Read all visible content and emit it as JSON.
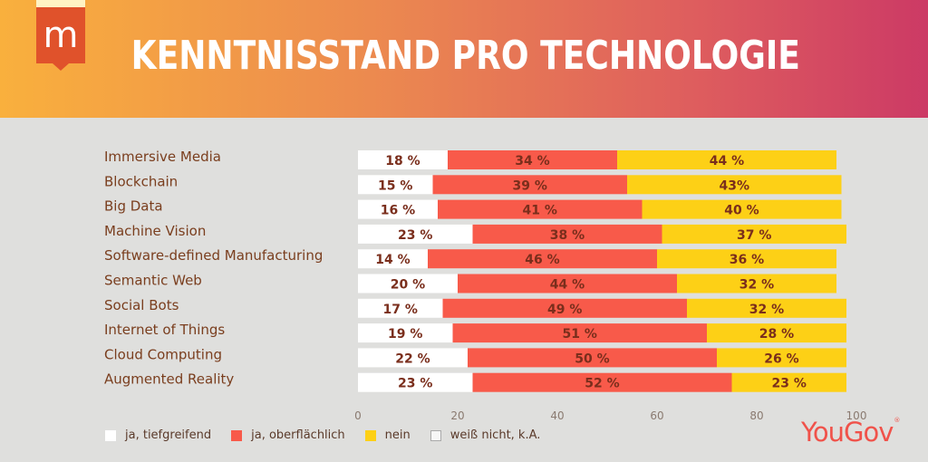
{
  "header": {
    "title": "KENNTNISSTAND PRO TECHNOLOGIE",
    "logo_letter": "m"
  },
  "brand": {
    "name": "YouGov",
    "mark": "®"
  },
  "colors": {
    "white": "#ffffff",
    "red": "#f85a4a",
    "yellow": "#fdd016",
    "light": "#f6f6f6",
    "logo": "#e0522b"
  },
  "chart_data": {
    "type": "bar",
    "orientation": "horizontal",
    "stacked": true,
    "title": "KENNTNISSTAND PRO TECHNOLOGIE",
    "categories": [
      "Immersive Media",
      "Blockchain",
      "Big Data",
      "Machine Vision",
      "Software-defined Manufacturing",
      "Semantic Web",
      "Social Bots",
      "Internet of Things",
      "Cloud Computing",
      "Augmented Reality"
    ],
    "series": [
      {
        "name": "ja, tiefgreifend",
        "color": "#ffffff",
        "values": [
          18,
          15,
          16,
          23,
          14,
          20,
          17,
          19,
          22,
          23
        ],
        "labels": [
          "18 %",
          "15 %",
          "16 %",
          "23 %",
          "14 %",
          "20 %",
          "17 %",
          "19 %",
          "22 %",
          "23 %"
        ]
      },
      {
        "name": "ja, oberflächlich",
        "color": "#f85a4a",
        "values": [
          34,
          39,
          41,
          38,
          46,
          44,
          49,
          51,
          50,
          52
        ],
        "labels": [
          "34 %",
          "39 %",
          "41 %",
          "38 %",
          "46 %",
          "44 %",
          "49 %",
          "51 %",
          "50 %",
          "52 %"
        ]
      },
      {
        "name": "nein",
        "color": "#fdd016",
        "values": [
          44,
          43,
          40,
          37,
          36,
          32,
          32,
          28,
          26,
          23
        ],
        "labels": [
          "44 %",
          "43%",
          "40 %",
          "37 %",
          "36 %",
          "32 %",
          "32 %",
          "28 %",
          "26 %",
          "23 %"
        ]
      },
      {
        "name": "weiß nicht, k.A.",
        "color": "#f6f6f6",
        "values": [
          0,
          0,
          0,
          0,
          0,
          0,
          0,
          0,
          0,
          0
        ],
        "labels": [
          "",
          "",
          "",
          "",
          "",
          "",
          "",
          "",
          "",
          ""
        ]
      }
    ],
    "xlim": [
      0,
      100
    ],
    "xticks": [
      "0",
      "20",
      "40",
      "60",
      "80",
      "100"
    ],
    "xlabel": "",
    "ylabel": "",
    "legend_position": "bottom-left"
  }
}
